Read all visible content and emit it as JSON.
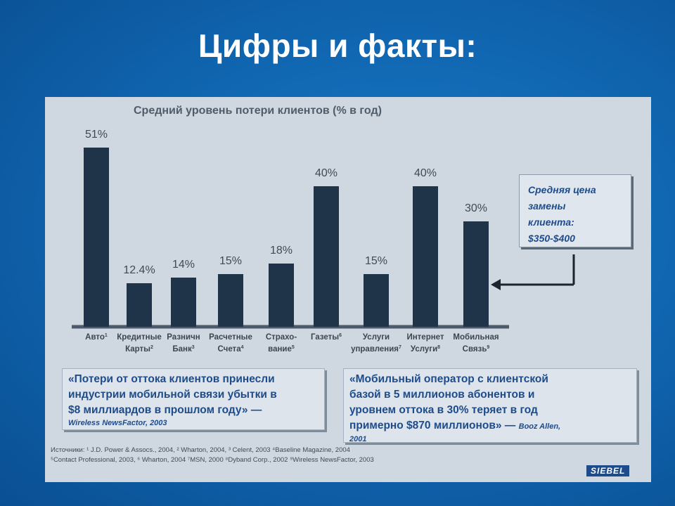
{
  "slide": {
    "title": "Цифры и факты:"
  },
  "chart_data": {
    "type": "bar",
    "title": "Средний уровень потери клиентов (% в год)",
    "ylim": [
      0,
      55
    ],
    "unit": "%",
    "grid": false,
    "categories": [
      {
        "lines": [
          "Авто"
        ],
        "sup": "1"
      },
      {
        "lines": [
          "Кредитные",
          "Карты"
        ],
        "sup": "2"
      },
      {
        "lines": [
          "Разничн",
          "Банк"
        ],
        "sup": "3"
      },
      {
        "lines": [
          "Расчетные",
          "Счета"
        ],
        "sup": "4"
      },
      {
        "lines": [
          "Страхо-",
          "вание"
        ],
        "sup": "5"
      },
      {
        "lines": [
          "Газеты"
        ],
        "sup": "6"
      },
      {
        "lines": [
          "Услуги",
          "управления"
        ],
        "sup": "7"
      },
      {
        "lines": [
          "Интернет",
          "Услуги"
        ],
        "sup": "8"
      },
      {
        "lines": [
          "Мобильная",
          "Связь"
        ],
        "sup": "9"
      }
    ],
    "values": [
      51,
      12.4,
      14,
      15,
      18,
      40,
      15,
      40,
      30
    ],
    "value_labels": [
      "51%",
      "12.4%",
      "14%",
      "15%",
      "18%",
      "40%",
      "15%",
      "40%",
      "30%"
    ],
    "bar_color": "#1f3448",
    "baseline_color": "#4b5b6b"
  },
  "callout": {
    "lines": [
      "Средняя цена",
      "замены",
      "клиента:",
      "$350-$400"
    ]
  },
  "quote_left": {
    "lines": [
      "«Потери от оттока клиентов принесли",
      "индустрии мобильной связи убытки в",
      "$8 миллиардов в прошлом году» —"
    ],
    "source": "Wireless NewsFactor, 2003"
  },
  "quote_right": {
    "lines": [
      "«Мобильный оператор с клиентской",
      "базой в 5 миллионов абонентов и",
      "уровнем оттока в 30% теряет в год",
      "примерно $870 миллионов» —"
    ],
    "source_inline": "Booz Allen,",
    "source_tail": "2001"
  },
  "sources": {
    "line1": "Источники: ¹ J.D. Power & Assocs., 2004, ² Wharton, 2004, ³ Celent, 2003 ⁴Baseline Magazine, 2004",
    "line2": "⁵Contact Professional, 2003, ⁶ Wharton, 2004 ⁷MSN, 2000 ⁸Dyband Corp., 2002 ⁹Wireless NewsFactor, 2003"
  },
  "logo": {
    "text": "SIEBEL"
  }
}
